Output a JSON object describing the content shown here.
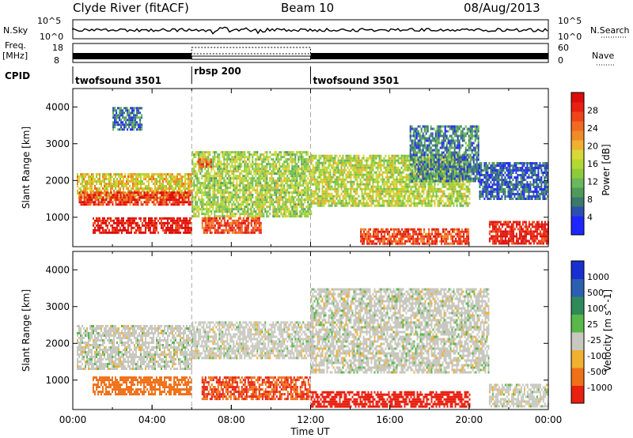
{
  "header": {
    "station_title": "Clyde River (fitACF)",
    "beam": "Beam 10",
    "date": "08/Aug/2013"
  },
  "status_panels": {
    "nsky_label": "N.Sky",
    "nsky_ticks": [
      "10^5",
      "10^0"
    ],
    "nsearch_label": "N.Search",
    "nsearch_ticks": [
      "10^5",
      "10^0"
    ],
    "freq_label_1": "Freq.",
    "freq_label_2": "[MHz]",
    "freq_ticks": [
      "18",
      "8"
    ],
    "nave_label": "Nave",
    "nave_ticks": [
      "60",
      "0"
    ],
    "cpid_label": "CPID",
    "cpid_segments": [
      {
        "name": "twofsound 3501",
        "start_hour": 0,
        "end_hour": 6
      },
      {
        "name": "rbsp 200",
        "start_hour": 6,
        "end_hour": 12
      },
      {
        "name": "twofsound 3501",
        "start_hour": 12,
        "end_hour": 24
      }
    ]
  },
  "time_axis": {
    "label": "Time UT",
    "ticks": [
      "00:00",
      "04:00",
      "08:00",
      "12:00",
      "16:00",
      "20:00",
      "00:00"
    ]
  },
  "chart_data": [
    {
      "type": "heatmap",
      "title": "",
      "xlabel": "",
      "ylabel": "Slant Range [km]",
      "xlim_hours": [
        0,
        24
      ],
      "ylim": [
        200,
        4500
      ],
      "ytick_labels": [
        "1000",
        "2000",
        "3000",
        "4000"
      ],
      "ytick_values": [
        1000,
        2000,
        3000,
        4000
      ],
      "colorbar": {
        "label": "Power [dB]",
        "tick_labels": [
          "4",
          "8",
          "12",
          "16",
          "20",
          "24",
          "28"
        ],
        "tick_values": [
          4,
          8,
          12,
          16,
          20,
          24,
          28
        ],
        "range": [
          0,
          30
        ],
        "colors": [
          "#1e26ff",
          "#1e26ff",
          "#2c4fb0",
          "#3a7a6a",
          "#4f9a5a",
          "#6ab85a",
          "#8ccc3c",
          "#b4d832",
          "#d8d83a",
          "#f0b030",
          "#f08a2a",
          "#f06a20",
          "#f04418",
          "#e82010",
          "#dc0c0c"
        ]
      },
      "echo_regions": [
        {
          "t0": 0.2,
          "t1": 6.0,
          "r0": 1500,
          "r1": 2200,
          "power": 18
        },
        {
          "t0": 0.3,
          "t1": 6.0,
          "r0": 1350,
          "r1": 1700,
          "power": 27
        },
        {
          "t0": 1.0,
          "t1": 6.0,
          "r0": 600,
          "r1": 1000,
          "power": 29
        },
        {
          "t0": 2.0,
          "t1": 3.5,
          "r0": 3400,
          "r1": 4000,
          "power": 6
        },
        {
          "t0": 6.0,
          "t1": 12.0,
          "r0": 1000,
          "r1": 2800,
          "power": 14
        },
        {
          "t0": 6.5,
          "t1": 9.5,
          "r0": 600,
          "r1": 1000,
          "power": 26
        },
        {
          "t0": 6.3,
          "t1": 7.0,
          "r0": 2350,
          "r1": 2600,
          "power": 24
        },
        {
          "t0": 12.0,
          "t1": 20.0,
          "r0": 1300,
          "r1": 2700,
          "power": 15
        },
        {
          "t0": 14.5,
          "t1": 20.0,
          "r0": 300,
          "r1": 700,
          "power": 26
        },
        {
          "t0": 17.0,
          "t1": 20.5,
          "r0": 2000,
          "r1": 3500,
          "power": 7
        },
        {
          "t0": 20.5,
          "t1": 24.0,
          "r0": 1500,
          "r1": 2500,
          "power": 5
        },
        {
          "t0": 21.0,
          "t1": 24.0,
          "r0": 300,
          "r1": 900,
          "power": 29
        }
      ]
    },
    {
      "type": "heatmap",
      "title": "",
      "xlabel": "Time UT",
      "ylabel": "Slant Range [km]",
      "xlim_hours": [
        0,
        24
      ],
      "ylim": [
        200,
        4500
      ],
      "ytick_labels": [
        "1000",
        "2000",
        "3000",
        "4000"
      ],
      "ytick_values": [
        1000,
        2000,
        3000,
        4000
      ],
      "colorbar": {
        "label": "Velocity [m s^-1]",
        "tick_labels": [
          "1000",
          "500",
          "100",
          "25",
          "-25",
          "-100",
          "-500",
          "-1000"
        ],
        "tick_values": [
          1000,
          500,
          100,
          25,
          -25,
          -100,
          -500,
          -1000
        ],
        "colors": [
          "#1a2fd0",
          "#2b5fb0",
          "#2f8a5a",
          "#5ab84a",
          "#c8c8c0",
          "#f0b030",
          "#f07018",
          "#e82010"
        ]
      },
      "echo_regions": [
        {
          "t0": 0.2,
          "t1": 6.0,
          "r0": 1300,
          "r1": 2500,
          "velocity": 0
        },
        {
          "t0": 1.0,
          "t1": 6.0,
          "r0": 600,
          "r1": 1100,
          "velocity": -150
        },
        {
          "t0": 6.0,
          "t1": 12.0,
          "r0": 1600,
          "r1": 2600,
          "velocity": 0
        },
        {
          "t0": 6.5,
          "t1": 12.0,
          "r0": 500,
          "r1": 1100,
          "velocity": -300
        },
        {
          "t0": 12.0,
          "t1": 21.0,
          "r0": 1200,
          "r1": 3500,
          "velocity": 0
        },
        {
          "t0": 12.0,
          "t1": 20.0,
          "r0": 300,
          "r1": 700,
          "velocity": -400
        },
        {
          "t0": 21.0,
          "t1": 24.0,
          "r0": 300,
          "r1": 900,
          "velocity": 0
        }
      ]
    }
  ]
}
